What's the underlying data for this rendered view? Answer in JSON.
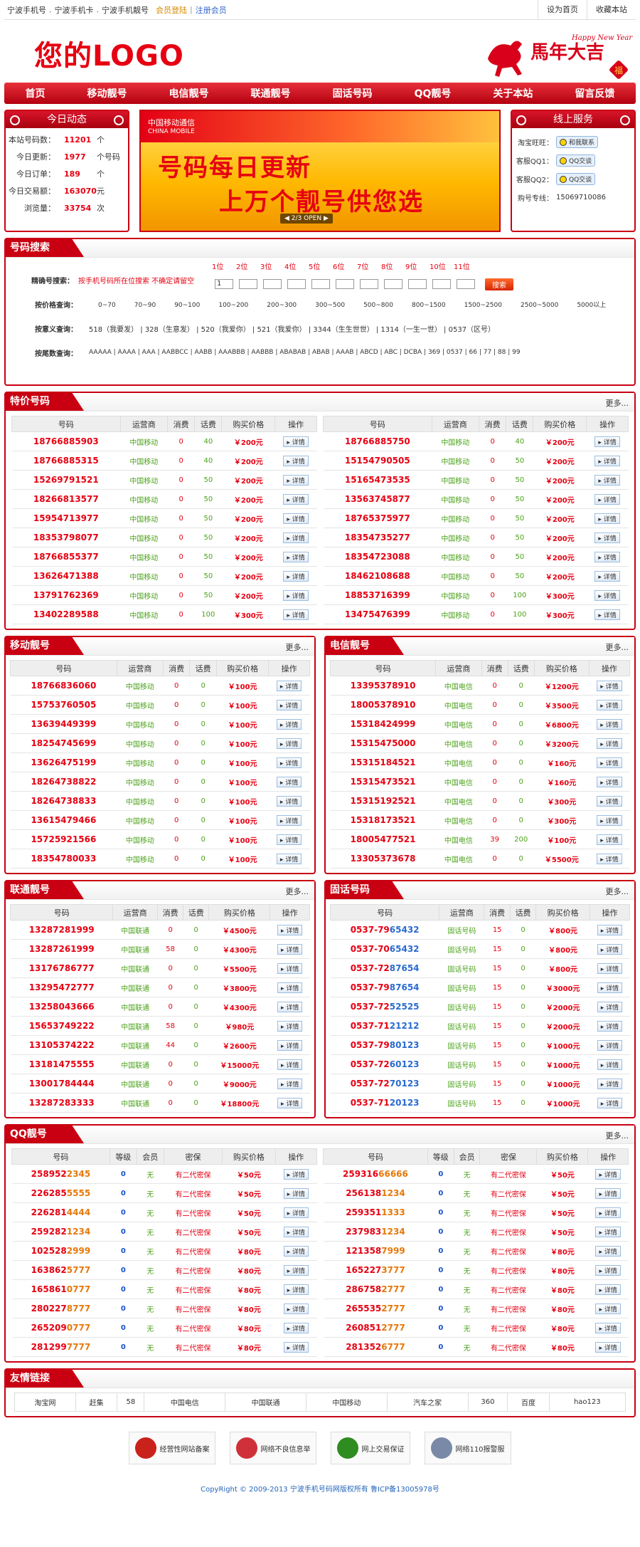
{
  "topbar": {
    "links": [
      "宁波手机号",
      "宁波手机卡",
      "宁波手机靓号"
    ],
    "login": "会员登陆",
    "register": "注册会员",
    "sethome": "设为首页",
    "fav": "收藏本站"
  },
  "header": {
    "logo": "您的LOGO",
    "newyear": "Happy New Year",
    "newyear_cn": "馬年大吉",
    "fu": "福"
  },
  "nav": [
    "首页",
    "移动靓号",
    "电信靓号",
    "联通靓号",
    "固话号码",
    "QQ靓号",
    "关于本站",
    "留言反馈"
  ],
  "stats": {
    "title": "今日动态",
    "rows": [
      {
        "label": "本站号码数：",
        "value": "11201",
        "unit": "个"
      },
      {
        "label": "今日更新：",
        "value": "1977",
        "unit": "个号码"
      },
      {
        "label": "今日订单：",
        "value": "189",
        "unit": "个"
      },
      {
        "label": "今日交易额：",
        "value": "163070",
        "unit": "元"
      },
      {
        "label": "浏览量：",
        "value": "33754",
        "unit": "次"
      }
    ]
  },
  "banner": {
    "brand": "中国移动通信",
    "brand_en": "CHINA MOBILE",
    "line1": "号码每日更新",
    "line2": "上万个靓号供您选",
    "pager": "2/3",
    "open": "OPEN"
  },
  "service": {
    "title": "线上服务",
    "taobao_label": "淘宝旺旺：",
    "taobao_btn": "和我联系",
    "qq1_label": "客服QQ1：",
    "qq2_label": "客服QQ2：",
    "qq_btn": "QQ交谈",
    "hotline_label": "购号专线：",
    "hotline": "15069710086"
  },
  "search": {
    "title": "号码搜索",
    "exact_label": "精确号搜索：",
    "hint": "按手机号码所在位搜索  不确定请留空",
    "positions": [
      "1位",
      "2位",
      "3位",
      "4位",
      "5位",
      "6位",
      "7位",
      "8位",
      "9位",
      "10位",
      "11位"
    ],
    "first_value": "1",
    "btn": "搜索",
    "price_label": "按价格查询：",
    "prices": [
      "0~70",
      "70~90",
      "90~100",
      "100~200",
      "200~300",
      "300~500",
      "500~800",
      "800~1500",
      "1500~2500",
      "2500~5000",
      "5000以上"
    ],
    "meaning_label": "按意义查询：",
    "meanings": "518（我要发） | 328（生意发） | 520（我爱你） | 521（我爱你） | 3344（生生世世） | 1314（一生一世） | 0537（区号）",
    "tail_label": "按尾数查询：",
    "tails": "AAAAA | AAAA | AAA | AABBCC | AABB | AAABBB | AABBB | ABABAB | ABAB | AAAB | ABCD | ABC | DCBA | 369 | 0537 | 66 | 77 | 88 | 99"
  },
  "cols": {
    "number": "号码",
    "operator": "运营商",
    "fee": "消费",
    "phone_fee": "话费",
    "price": "购买价格",
    "action": "操作",
    "level": "等级",
    "member": "会员",
    "secure": "密保"
  },
  "detail": "详情",
  "more": "更多...",
  "tejia": {
    "title": "特价号码",
    "left": [
      [
        "187668",
        "85903",
        "中国移动",
        "0",
        "40",
        "￥200元"
      ],
      [
        "187668",
        "85315",
        "中国移动",
        "0",
        "40",
        "￥200元"
      ],
      [
        "152697",
        "91521",
        "中国移动",
        "0",
        "50",
        "￥200元"
      ],
      [
        "182668",
        "13577",
        "中国移动",
        "0",
        "50",
        "￥200元"
      ],
      [
        "159547",
        "13977",
        "中国移动",
        "0",
        "50",
        "￥200元"
      ],
      [
        "183537",
        "98077",
        "中国移动",
        "0",
        "50",
        "￥200元"
      ],
      [
        "187668",
        "55377",
        "中国移动",
        "0",
        "50",
        "￥200元"
      ],
      [
        "136264",
        "71388",
        "中国移动",
        "0",
        "50",
        "￥200元"
      ],
      [
        "137917",
        "62369",
        "中国移动",
        "0",
        "50",
        "￥200元"
      ],
      [
        "134022",
        "89588",
        "中国移动",
        "0",
        "100",
        "￥300元"
      ]
    ],
    "right": [
      [
        "187668",
        "85750",
        "中国移动",
        "0",
        "40",
        "￥200元"
      ],
      [
        "151547",
        "90505",
        "中国移动",
        "0",
        "50",
        "￥200元"
      ],
      [
        "151654",
        "73535",
        "中国移动",
        "0",
        "50",
        "￥200元"
      ],
      [
        "135637",
        "45877",
        "中国移动",
        "0",
        "50",
        "￥200元"
      ],
      [
        "187653",
        "75977",
        "中国移动",
        "0",
        "50",
        "￥200元"
      ],
      [
        "183547",
        "35277",
        "中国移动",
        "0",
        "50",
        "￥200元"
      ],
      [
        "183547",
        "23088",
        "中国移动",
        "0",
        "50",
        "￥200元"
      ],
      [
        "184621",
        "08688",
        "中国移动",
        "0",
        "50",
        "￥200元"
      ],
      [
        "188537",
        "16399",
        "中国移动",
        "0",
        "100",
        "￥300元"
      ],
      [
        "134754",
        "76399",
        "中国移动",
        "0",
        "100",
        "￥300元"
      ]
    ]
  },
  "yidong": {
    "title": "移动靓号",
    "rows": [
      [
        "187668",
        "36060",
        "中国移动",
        "0",
        "0",
        "￥100元"
      ],
      [
        "157537",
        "60505",
        "中国移动",
        "0",
        "0",
        "￥100元"
      ],
      [
        "136394",
        "49399",
        "中国移动",
        "0",
        "0",
        "￥100元"
      ],
      [
        "182547",
        "45699",
        "中国移动",
        "0",
        "0",
        "￥100元"
      ],
      [
        "136264",
        "75199",
        "中国移动",
        "0",
        "0",
        "￥100元"
      ],
      [
        "182647",
        "38822",
        "中国移动",
        "0",
        "0",
        "￥100元"
      ],
      [
        "182647",
        "38833",
        "中国移动",
        "0",
        "0",
        "￥100元"
      ],
      [
        "136154",
        "79466",
        "中国移动",
        "0",
        "0",
        "￥100元"
      ],
      [
        "157259",
        "21566",
        "中国移动",
        "0",
        "0",
        "￥100元"
      ],
      [
        "183547",
        "80033",
        "中国移动",
        "0",
        "0",
        "￥100元"
      ]
    ]
  },
  "dianxin": {
    "title": "电信靓号",
    "rows": [
      [
        "133953",
        "78910",
        "中国电信",
        "0",
        "0",
        "￥1200元"
      ],
      [
        "180053",
        "78910",
        "中国电信",
        "0",
        "0",
        "￥3500元"
      ],
      [
        "153184",
        "24999",
        "中国电信",
        "0",
        "0",
        "￥6800元"
      ],
      [
        "153154",
        "75000",
        "中国电信",
        "0",
        "0",
        "￥3200元"
      ],
      [
        "153151",
        "84521",
        "中国电信",
        "0",
        "0",
        "￥160元"
      ],
      [
        "153154",
        "73521",
        "中国电信",
        "0",
        "0",
        "￥160元"
      ],
      [
        "153151",
        "92521",
        "中国电信",
        "0",
        "0",
        "￥300元"
      ],
      [
        "153181",
        "73521",
        "中国电信",
        "0",
        "0",
        "￥300元"
      ],
      [
        "180054",
        "77521",
        "中国电信",
        "39",
        "200",
        "￥100元"
      ],
      [
        "133053",
        "73678",
        "中国电信",
        "0",
        "0",
        "￥5500元"
      ]
    ]
  },
  "liantong": {
    "title": "联通靓号",
    "rows": [
      [
        "132872",
        "81999",
        "中国联通",
        "0",
        "0",
        "￥4500元"
      ],
      [
        "132872",
        "61999",
        "中国联通",
        "58",
        "0",
        "￥4300元"
      ],
      [
        "131767",
        "86777",
        "中国联通",
        "0",
        "0",
        "￥5500元"
      ],
      [
        "132954",
        "72777",
        "中国联通",
        "0",
        "0",
        "￥3800元"
      ],
      [
        "132580",
        "43666",
        "中国联通",
        "0",
        "0",
        "￥4300元"
      ],
      [
        "156537",
        "49222",
        "中国联通",
        "58",
        "0",
        "￥980元"
      ],
      [
        "131053",
        "74222",
        "中国联通",
        "44",
        "0",
        "￥2600元"
      ],
      [
        "131814",
        "75555",
        "中国联通",
        "0",
        "0",
        "￥15000元"
      ],
      [
        "130017",
        "84444",
        "中国联通",
        "0",
        "0",
        "￥9000元"
      ],
      [
        "132872",
        "83333",
        "中国联通",
        "0",
        "0",
        "￥18800元"
      ]
    ]
  },
  "guhua": {
    "title": "固话号码",
    "rows": [
      [
        "0537-79",
        "65432",
        "固话号码",
        "15",
        "0",
        "￥800元"
      ],
      [
        "0537-70",
        "65432",
        "固话号码",
        "15",
        "0",
        "￥800元"
      ],
      [
        "0537-72",
        "87654",
        "固话号码",
        "15",
        "0",
        "￥800元"
      ],
      [
        "0537-79",
        "87654",
        "固话号码",
        "15",
        "0",
        "￥3000元"
      ],
      [
        "0537-72",
        "52525",
        "固话号码",
        "15",
        "0",
        "￥2000元"
      ],
      [
        "0537-71",
        "21212",
        "固话号码",
        "15",
        "0",
        "￥2000元"
      ],
      [
        "0537-79",
        "80123",
        "固话号码",
        "15",
        "0",
        "￥1000元"
      ],
      [
        "0537-72",
        "60123",
        "固话号码",
        "15",
        "0",
        "￥1000元"
      ],
      [
        "0537-72",
        "70123",
        "固话号码",
        "15",
        "0",
        "￥1000元"
      ],
      [
        "0537-71",
        "20123",
        "固话号码",
        "15",
        "0",
        "￥1000元"
      ]
    ]
  },
  "qq": {
    "title": "QQ靓号",
    "left": [
      [
        "258952",
        "2345",
        "0",
        "无",
        "有二代密保",
        "￥50元"
      ],
      [
        "226285",
        "5555",
        "0",
        "无",
        "有二代密保",
        "￥50元"
      ],
      [
        "226281",
        "4444",
        "0",
        "无",
        "有二代密保",
        "￥50元"
      ],
      [
        "259282",
        "1234",
        "0",
        "无",
        "有二代密保",
        "￥50元"
      ],
      [
        "102528",
        "2999",
        "0",
        "无",
        "有二代密保",
        "￥80元"
      ],
      [
        "163862",
        "5777",
        "0",
        "无",
        "有二代密保",
        "￥80元"
      ],
      [
        "165861",
        "0777",
        "0",
        "无",
        "有二代密保",
        "￥80元"
      ],
      [
        "280227",
        "8777",
        "0",
        "无",
        "有二代密保",
        "￥80元"
      ],
      [
        "265209",
        "0777",
        "0",
        "无",
        "有二代密保",
        "￥80元"
      ],
      [
        "281299",
        "7777",
        "0",
        "无",
        "有二代密保",
        "￥80元"
      ]
    ],
    "right": [
      [
        "259316",
        "66666",
        "0",
        "无",
        "有二代密保",
        "￥50元"
      ],
      [
        "256138",
        "1234",
        "0",
        "无",
        "有二代密保",
        "￥50元"
      ],
      [
        "259351",
        "1333",
        "0",
        "无",
        "有二代密保",
        "￥50元"
      ],
      [
        "237983",
        "1234",
        "0",
        "无",
        "有二代密保",
        "￥50元"
      ],
      [
        "121358",
        "7999",
        "0",
        "无",
        "有二代密保",
        "￥80元"
      ],
      [
        "165227",
        "3777",
        "0",
        "无",
        "有二代密保",
        "￥80元"
      ],
      [
        "286758",
        "2777",
        "0",
        "无",
        "有二代密保",
        "￥80元"
      ],
      [
        "265535",
        "2777",
        "0",
        "无",
        "有二代密保",
        "￥80元"
      ],
      [
        "260851",
        "2777",
        "0",
        "无",
        "有二代密保",
        "￥80元"
      ],
      [
        "281352",
        "6777",
        "0",
        "无",
        "有二代密保",
        "￥80元"
      ]
    ]
  },
  "friends": {
    "title": "友情链接",
    "items": [
      "淘宝网",
      "赶集",
      "58",
      "中国电信",
      "中国联通",
      "中国移动",
      "汽车之家",
      "360",
      "百度",
      "hao123"
    ]
  },
  "badges": [
    "经营性网站备案",
    "网络不良信息举",
    "网上交易保证",
    "网络110报警服"
  ],
  "copyright": "CopyRight © 2009-2013  宁波手机号码网版权所有  鲁ICP备13005978号",
  "colors": {
    "accent": "#c90012",
    "green": "#2a8d00"
  }
}
